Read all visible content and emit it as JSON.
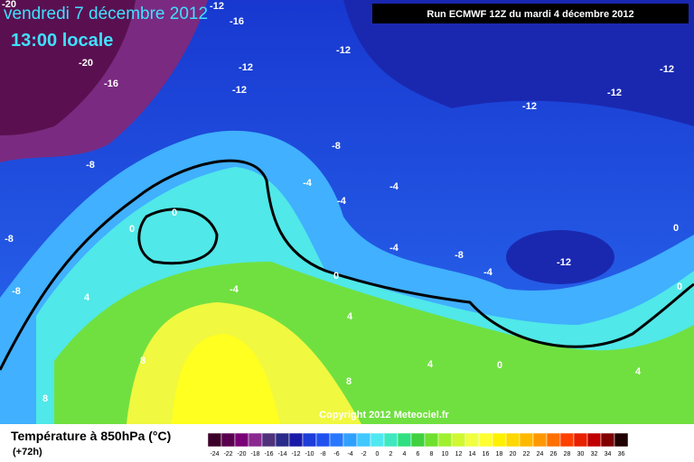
{
  "header": {
    "title": "vendredi 7 décembre 2012",
    "subtitle": "13:00 locale",
    "run": "Run ECMWF 12Z du mardi 4 décembre 2012"
  },
  "map": {
    "copyright": "Copyright 2012 Meteociel.fr",
    "labels": [
      "-20",
      "-12",
      "-16",
      "-12",
      "-12",
      "-20",
      "-16",
      "-12",
      "-12",
      "-12",
      "-12",
      "-8",
      "-8",
      "-4",
      "-4",
      "-4",
      "-4",
      "-8",
      "-4",
      "-12",
      "0",
      "0",
      "0",
      "0",
      "0",
      "0",
      "-8",
      "-8",
      "4",
      "-4",
      "4",
      "8",
      "8",
      "8",
      "4",
      "4"
    ]
  },
  "legend": {
    "title": "Température à 850hPa (°C)",
    "lead": "(+72h)",
    "scale_labels": [
      -24,
      -22,
      -20,
      -18,
      -16,
      -14,
      -12,
      -10,
      -8,
      -6,
      -4,
      -2,
      0,
      2,
      4,
      6,
      8,
      10,
      12,
      14,
      16,
      18,
      20,
      22,
      24,
      26,
      28,
      30,
      32,
      34,
      36
    ],
    "colors": [
      "#3c0028",
      "#5a0050",
      "#7a0078",
      "#8a2a90",
      "#50307a",
      "#2a2a8a",
      "#1a1aa8",
      "#1e3cd8",
      "#2050f0",
      "#2878ff",
      "#30a0ff",
      "#40c8ff",
      "#50e8f0",
      "#40e8c0",
      "#30e080",
      "#40d040",
      "#70e030",
      "#a0f030",
      "#d0f830",
      "#f0ff40",
      "#ffff30",
      "#fff000",
      "#ffd800",
      "#ffb800",
      "#ff9800",
      "#ff7000",
      "#ff4000",
      "#e82000",
      "#c00000",
      "#800000",
      "#200000"
    ]
  }
}
